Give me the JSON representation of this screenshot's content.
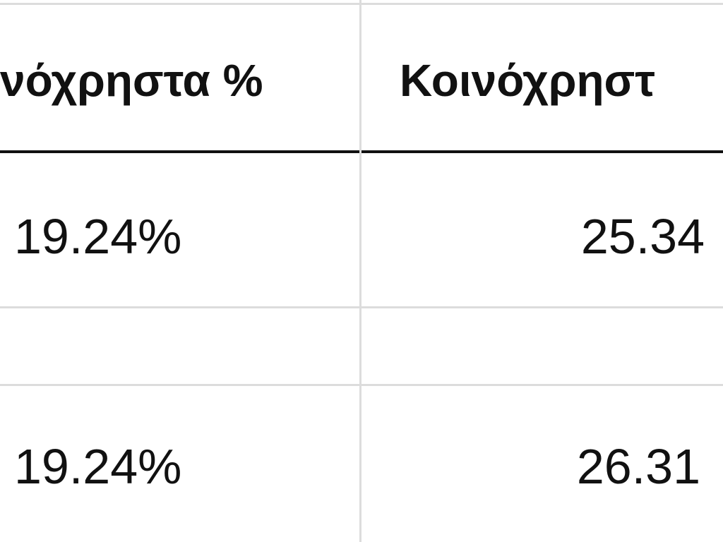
{
  "table": {
    "header": [
      "νόχρηστα %",
      "Κοινόχρηστ"
    ],
    "rows": [
      [
        "19.24%",
        "25.34"
      ],
      [
        "19.24%",
        "26.31"
      ]
    ]
  }
}
